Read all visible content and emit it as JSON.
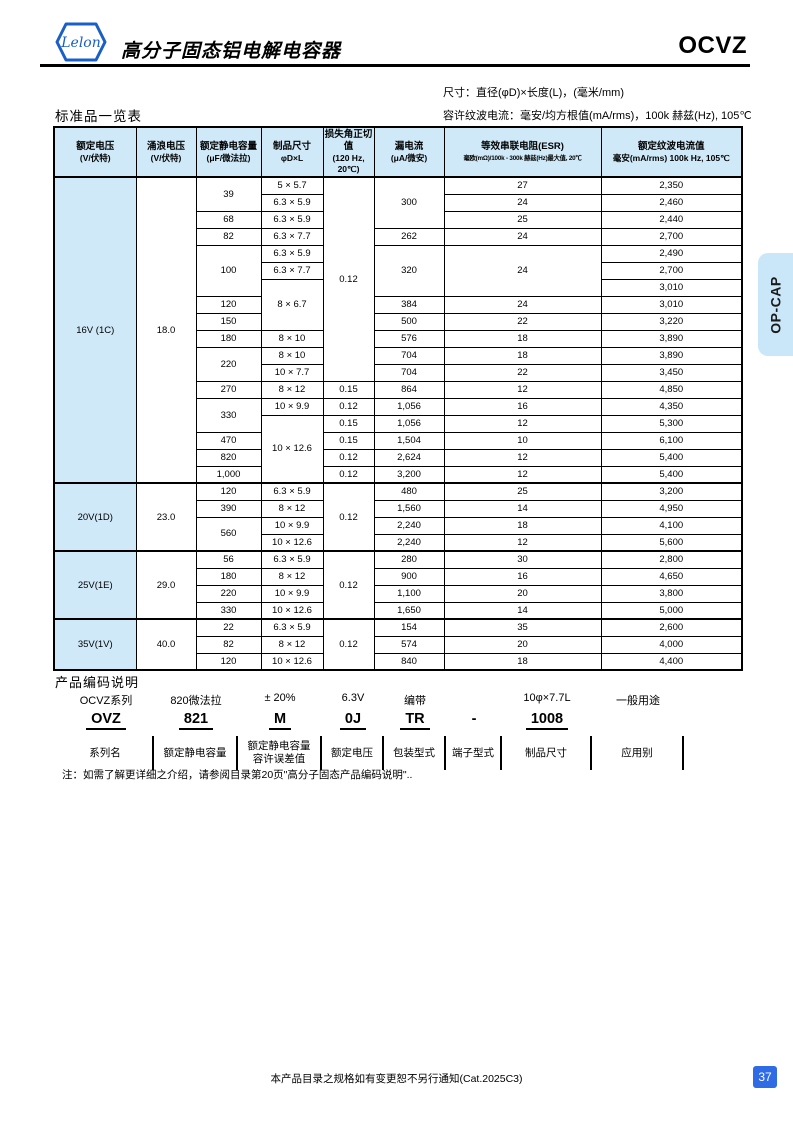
{
  "colors": {
    "accent_blue": "#1a5fc8",
    "light_blue_fill": "#cfe9f8",
    "tab_fill": "#c9e7f8",
    "page_badge_blue": "#2f6be4"
  },
  "header": {
    "logo_text": "Lelon",
    "title": "高分子固态铝电解电容器",
    "series": "OCVZ"
  },
  "side_tab": {
    "label": "OP-CAP"
  },
  "standard_table": {
    "section_title": "标准品一览表",
    "dim_note": "尺寸：直径(φD)×长度(L)，(毫米/mm)",
    "ripple_note": "容许纹波电流：毫安/均方根值(mA/rms)，100k 赫兹(Hz), 105℃",
    "columns": [
      {
        "line1": "额定电压",
        "line2": "(V/伏特)"
      },
      {
        "line1": "涌浪电压",
        "line2": "(V/伏特)"
      },
      {
        "line1": "额定静电容量",
        "line2": "(μF/微法拉)"
      },
      {
        "line1": "制品尺寸",
        "line2": "φD×L"
      },
      {
        "line1": "损失角正切值",
        "line2": "(120 Hz, 20℃)"
      },
      {
        "line1": "漏电流",
        "line2": "(μA/微安)"
      },
      {
        "line1": "等效串联电阻(ESR)",
        "line2": "毫欧(mΩ)/100k - 300k 赫兹(Hz)最大值, 20℃"
      },
      {
        "line1": "额定纹波电流值",
        "line2": "毫安(mA/rms) 100k Hz, 105℃"
      }
    ],
    "rows": [
      {
        "sec": true,
        "cells": [
          {
            "t": "16V (1C)",
            "rs": 18
          },
          {
            "t": "18.0",
            "rs": 18
          },
          {
            "t": "39",
            "rs": 2
          },
          {
            "t": "5 × 5.7"
          },
          {
            "t": "0.12",
            "rs": 12
          },
          {
            "t": "300",
            "rs": 3
          },
          {
            "t": "27"
          },
          {
            "t": "2,350"
          }
        ]
      },
      {
        "cells": [
          null,
          null,
          null,
          {
            "t": "6.3 × 5.9"
          },
          null,
          null,
          {
            "t": "24"
          },
          {
            "t": "2,460"
          }
        ]
      },
      {
        "cells": [
          null,
          null,
          {
            "t": "68"
          },
          {
            "t": "6.3 × 5.9"
          },
          null,
          null,
          {
            "t": "25"
          },
          {
            "t": "2,440"
          }
        ]
      },
      {
        "cells": [
          null,
          null,
          {
            "t": "82"
          },
          {
            "t": "6.3 × 7.7"
          },
          null,
          {
            "t": "262"
          },
          {
            "t": "24"
          },
          {
            "t": "2,700"
          }
        ]
      },
      {
        "cells": [
          null,
          null,
          {
            "t": "100",
            "rs": 3
          },
          {
            "t": "6.3 × 5.9"
          },
          null,
          {
            "t": "320",
            "rs": 3
          },
          {
            "t": "24",
            "rs": 3
          },
          {
            "t": "2,490"
          }
        ]
      },
      {
        "cells": [
          null,
          null,
          null,
          {
            "t": "6.3 × 7.7"
          },
          null,
          null,
          null,
          {
            "t": "2,700"
          }
        ]
      },
      {
        "cells": [
          null,
          null,
          null,
          {
            "t": "8 × 6.7",
            "rs": 3
          },
          null,
          null,
          null,
          {
            "t": "3,010"
          }
        ]
      },
      {
        "cells": [
          null,
          null,
          {
            "t": "120"
          },
          null,
          null,
          {
            "t": "384"
          },
          {
            "t": "24"
          },
          {
            "t": "3,010"
          }
        ]
      },
      {
        "cells": [
          null,
          null,
          {
            "t": "150"
          },
          null,
          null,
          {
            "t": "500"
          },
          {
            "t": "22"
          },
          {
            "t": "3,220"
          }
        ]
      },
      {
        "cells": [
          null,
          null,
          {
            "t": "180"
          },
          {
            "t": "8 × 10"
          },
          null,
          {
            "t": "576"
          },
          {
            "t": "18"
          },
          {
            "t": "3,890"
          }
        ]
      },
      {
        "cells": [
          null,
          null,
          {
            "t": "220",
            "rs": 2
          },
          {
            "t": "8 × 10"
          },
          null,
          {
            "t": "704"
          },
          {
            "t": "18"
          },
          {
            "t": "3,890"
          }
        ]
      },
      {
        "cells": [
          null,
          null,
          null,
          {
            "t": "10 × 7.7"
          },
          null,
          {
            "t": "704"
          },
          {
            "t": "22"
          },
          {
            "t": "3,450"
          }
        ]
      },
      {
        "cells": [
          null,
          null,
          {
            "t": "270"
          },
          {
            "t": "8 × 12"
          },
          {
            "t": "0.15"
          },
          {
            "t": "864"
          },
          {
            "t": "12"
          },
          {
            "t": "4,850"
          }
        ]
      },
      {
        "cells": [
          null,
          null,
          {
            "t": "330",
            "rs": 2
          },
          {
            "t": "10 × 9.9"
          },
          {
            "t": "0.12"
          },
          {
            "t": "1,056"
          },
          {
            "t": "16"
          },
          {
            "t": "4,350"
          }
        ]
      },
      {
        "cells": [
          null,
          null,
          null,
          {
            "t": "10 × 12.6",
            "rs": 4
          },
          {
            "t": "0.15"
          },
          {
            "t": "1,056"
          },
          {
            "t": "12"
          },
          {
            "t": "5,300"
          }
        ]
      },
      {
        "cells": [
          null,
          null,
          {
            "t": "470"
          },
          null,
          {
            "t": "0.15"
          },
          {
            "t": "1,504"
          },
          {
            "t": "10"
          },
          {
            "t": "6,100"
          }
        ]
      },
      {
        "cells": [
          null,
          null,
          {
            "t": "820"
          },
          null,
          {
            "t": "0.12"
          },
          {
            "t": "2,624"
          },
          {
            "t": "12"
          },
          {
            "t": "5,400"
          }
        ]
      },
      {
        "cells": [
          null,
          null,
          {
            "t": "1,000"
          },
          null,
          {
            "t": "0.12"
          },
          {
            "t": "3,200"
          },
          {
            "t": "12"
          },
          {
            "t": "5,400"
          }
        ]
      },
      {
        "sec": true,
        "cells": [
          {
            "t": "20V(1D)",
            "rs": 4
          },
          {
            "t": "23.0",
            "rs": 4
          },
          {
            "t": "120"
          },
          {
            "t": "6.3 × 5.9"
          },
          {
            "t": "0.12",
            "rs": 4
          },
          {
            "t": "480"
          },
          {
            "t": "25"
          },
          {
            "t": "3,200"
          }
        ]
      },
      {
        "cells": [
          null,
          null,
          {
            "t": "390"
          },
          {
            "t": "8 × 12"
          },
          null,
          {
            "t": "1,560"
          },
          {
            "t": "14"
          },
          {
            "t": "4,950"
          }
        ]
      },
      {
        "cells": [
          null,
          null,
          {
            "t": "560",
            "rs": 2
          },
          {
            "t": "10 × 9.9"
          },
          null,
          {
            "t": "2,240"
          },
          {
            "t": "18"
          },
          {
            "t": "4,100"
          }
        ]
      },
      {
        "cells": [
          null,
          null,
          null,
          {
            "t": "10 × 12.6"
          },
          null,
          {
            "t": "2,240"
          },
          {
            "t": "12"
          },
          {
            "t": "5,600"
          }
        ]
      },
      {
        "sec": true,
        "cells": [
          {
            "t": "25V(1E)",
            "rs": 4
          },
          {
            "t": "29.0",
            "rs": 4
          },
          {
            "t": "56"
          },
          {
            "t": "6.3 × 5.9"
          },
          {
            "t": "0.12",
            "rs": 4
          },
          {
            "t": "280"
          },
          {
            "t": "30"
          },
          {
            "t": "2,800"
          }
        ]
      },
      {
        "cells": [
          null,
          null,
          {
            "t": "180"
          },
          {
            "t": "8 × 12"
          },
          null,
          {
            "t": "900"
          },
          {
            "t": "16"
          },
          {
            "t": "4,650"
          }
        ]
      },
      {
        "cells": [
          null,
          null,
          {
            "t": "220"
          },
          {
            "t": "10 × 9.9"
          },
          null,
          {
            "t": "1,100"
          },
          {
            "t": "20"
          },
          {
            "t": "3,800"
          }
        ]
      },
      {
        "cells": [
          null,
          null,
          {
            "t": "330"
          },
          {
            "t": "10 × 12.6"
          },
          null,
          {
            "t": "1,650"
          },
          {
            "t": "14"
          },
          {
            "t": "5,000"
          }
        ]
      },
      {
        "sec": true,
        "cells": [
          {
            "t": "35V(1V)",
            "rs": 3
          },
          {
            "t": "40.0",
            "rs": 3
          },
          {
            "t": "22"
          },
          {
            "t": "6.3 × 5.9"
          },
          {
            "t": "0.12",
            "rs": 3
          },
          {
            "t": "154"
          },
          {
            "t": "35"
          },
          {
            "t": "2,600"
          }
        ]
      },
      {
        "cells": [
          null,
          null,
          {
            "t": "82"
          },
          {
            "t": "8 × 12"
          },
          null,
          {
            "t": "574"
          },
          {
            "t": "20"
          },
          {
            "t": "4,000"
          }
        ]
      },
      {
        "cells": [
          null,
          null,
          {
            "t": "120"
          },
          {
            "t": "10 × 12.6"
          },
          null,
          {
            "t": "840"
          },
          {
            "t": "18"
          },
          {
            "t": "4,400"
          }
        ]
      }
    ]
  },
  "part_code": {
    "title": "产品编码说明",
    "columns": [
      {
        "top": "OCVZ系列",
        "code": "OVZ",
        "underline": true,
        "label": "系列名"
      },
      {
        "top": "820微法拉",
        "code": "821",
        "underline": true,
        "label": "额定静电容量"
      },
      {
        "top": "± 20%",
        "code": "M",
        "underline": true,
        "label": "额定静电容量 容许误差值"
      },
      {
        "top": "6.3V",
        "code": "0J",
        "underline": true,
        "label": "额定电压"
      },
      {
        "top": "编带",
        "code": "TR",
        "underline": true,
        "label": "包装型式"
      },
      {
        "top": "",
        "code": "-",
        "underline": false,
        "label": "端子型式"
      },
      {
        "top": "10φ×7.7L",
        "code": "1008",
        "underline": true,
        "label": "制品尺寸"
      },
      {
        "top": "一般用途",
        "code": "",
        "underline": false,
        "label": "应用别"
      }
    ],
    "note": "注：如需了解更详细之介绍，请参阅目录第20页\"高分子固态产品编码说明\".."
  },
  "footer": {
    "notice": "本产品目录之规格如有变更恕不另行通知(Cat.2025C3)",
    "page_number": "37"
  }
}
